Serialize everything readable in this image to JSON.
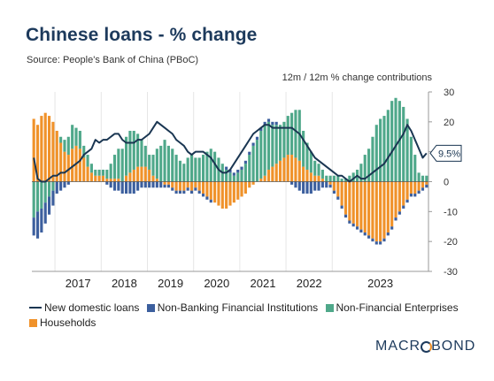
{
  "header": {
    "title": "Chinese loans - % change",
    "source": "Source: People's Bank of China (PBoC)",
    "subtitle": "12m / 12m % change contributions"
  },
  "brand": {
    "pre": "MACR",
    "o": "O",
    "post": "BOND"
  },
  "colors": {
    "households": "#f0922a",
    "nonfinancial": "#4fa88a",
    "nbfi": "#3c5f9e",
    "line": "#1a3652",
    "grid": "#e6e6e6"
  },
  "chart_data": {
    "type": "bar",
    "stacked": true,
    "x_tick_labels": [
      "2017",
      "2018",
      "2019",
      "2020",
      "2021",
      "2022",
      "2023"
    ],
    "ylim": [
      -30,
      30
    ],
    "y_ticks": [
      30,
      20,
      10,
      0,
      -10,
      -20,
      -30
    ],
    "y_tick_labels": [
      "30",
      "20",
      "10",
      "0",
      "-10",
      "-20",
      "-30"
    ],
    "x_start": "2016-07",
    "last_value_label": "9.5%",
    "series": [
      {
        "name": "Households",
        "values": [
          21,
          19,
          22,
          23,
          22,
          20,
          17,
          13,
          10,
          9,
          11,
          12,
          11,
          8,
          5,
          3,
          2,
          2,
          2,
          1,
          1,
          1,
          1,
          0,
          2,
          3,
          4,
          5,
          5,
          5,
          4,
          2,
          1,
          0,
          -1,
          -1,
          -2,
          -3,
          -3,
          -3,
          -2,
          -3,
          -2,
          -3,
          -4,
          -5,
          -6,
          -7,
          -8,
          -9,
          -9,
          -8,
          -7,
          -6,
          -5,
          -4,
          -2,
          -1,
          0,
          1,
          2,
          4,
          5,
          6,
          7,
          8,
          9,
          9,
          8,
          7,
          5,
          4,
          3,
          2,
          2,
          1,
          0,
          -1,
          -3,
          -5,
          -8,
          -11,
          -13,
          -14,
          -15,
          -16,
          -17,
          -18,
          -19,
          -20,
          -20,
          -19,
          -17,
          -15,
          -12,
          -10,
          -8,
          -6,
          -4,
          -4,
          -3,
          -2,
          -1
        ]
      },
      {
        "name": "Non-Financial Enterprises",
        "values": [
          -12,
          -10,
          -9,
          -7,
          -5,
          -3,
          0,
          2,
          4,
          6,
          8,
          6,
          6,
          4,
          4,
          3,
          2,
          2,
          2,
          3,
          5,
          8,
          10,
          11,
          13,
          14,
          13,
          11,
          9,
          7,
          5,
          7,
          10,
          12,
          14,
          12,
          11,
          9,
          7,
          6,
          8,
          9,
          8,
          8,
          9,
          10,
          11,
          10,
          8,
          6,
          4,
          3,
          2,
          3,
          4,
          6,
          9,
          12,
          14,
          16,
          17,
          16,
          14,
          13,
          12,
          12,
          13,
          14,
          16,
          17,
          12,
          9,
          7,
          5,
          4,
          3,
          2,
          2,
          2,
          2,
          1,
          1,
          2,
          3,
          4,
          6,
          9,
          11,
          15,
          19,
          21,
          22,
          24,
          27,
          28,
          27,
          25,
          21,
          15,
          9,
          3,
          2,
          2
        ]
      },
      {
        "name": "Non-Banking Financial Institutions",
        "values": [
          -6,
          -9,
          -8,
          -7,
          -6,
          -5,
          -4,
          -3,
          -2,
          -1,
          0,
          0,
          0,
          0,
          0,
          0,
          0,
          0,
          0,
          -1,
          -2,
          -3,
          -3,
          -4,
          -4,
          -4,
          -4,
          -3,
          -2,
          -2,
          -2,
          -2,
          -2,
          -2,
          -1,
          -1,
          -1,
          -1,
          -1,
          -1,
          -1,
          -1,
          -1,
          -1,
          -1,
          -1,
          -1,
          0,
          0,
          0,
          1,
          1,
          1,
          1,
          1,
          1,
          1,
          1,
          1,
          1,
          1,
          1,
          1,
          1,
          0,
          0,
          0,
          -1,
          -2,
          -3,
          -4,
          -4,
          -4,
          -3,
          -3,
          -2,
          -2,
          -1,
          -1,
          -1,
          -1,
          -1,
          -1,
          -1,
          -1,
          -1,
          -1,
          -1,
          -1,
          -1,
          -1,
          -1,
          -1,
          -1,
          -1,
          -1,
          -1,
          -1,
          -1,
          -1,
          -1,
          -1,
          -1
        ]
      },
      {
        "name": "New domestic loans",
        "type": "line",
        "values": [
          8,
          1,
          0,
          0,
          1,
          2,
          2,
          3,
          3,
          4,
          5,
          6,
          7,
          9,
          10,
          11,
          14,
          13,
          14,
          14,
          15,
          16,
          16,
          14,
          13,
          13,
          13,
          14,
          14,
          15,
          16,
          18,
          20,
          19,
          18,
          17,
          16,
          14,
          13,
          12,
          10,
          9,
          10,
          10,
          10,
          9,
          8,
          6,
          4,
          3,
          3,
          4,
          6,
          8,
          10,
          12,
          14,
          16,
          17,
          18,
          19,
          19,
          18,
          18,
          18,
          18,
          18,
          18,
          17,
          16,
          14,
          12,
          10,
          8,
          7,
          6,
          5,
          4,
          3,
          2,
          2,
          1,
          0,
          1,
          2,
          1,
          1,
          2,
          3,
          4,
          5,
          6,
          8,
          10,
          12,
          14,
          16,
          19,
          17,
          14,
          11,
          8,
          9.5
        ]
      }
    ]
  },
  "legend": [
    {
      "label": "New domestic loans",
      "kind": "line",
      "color": "#1a3652"
    },
    {
      "label": "Non-Banking Financial Institutions",
      "kind": "box",
      "color": "#3c5f9e"
    },
    {
      "label": "Non-Financial Enterprises",
      "kind": "box",
      "color": "#4fa88a"
    },
    {
      "label": "Households",
      "kind": "box",
      "color": "#f0922a"
    }
  ]
}
